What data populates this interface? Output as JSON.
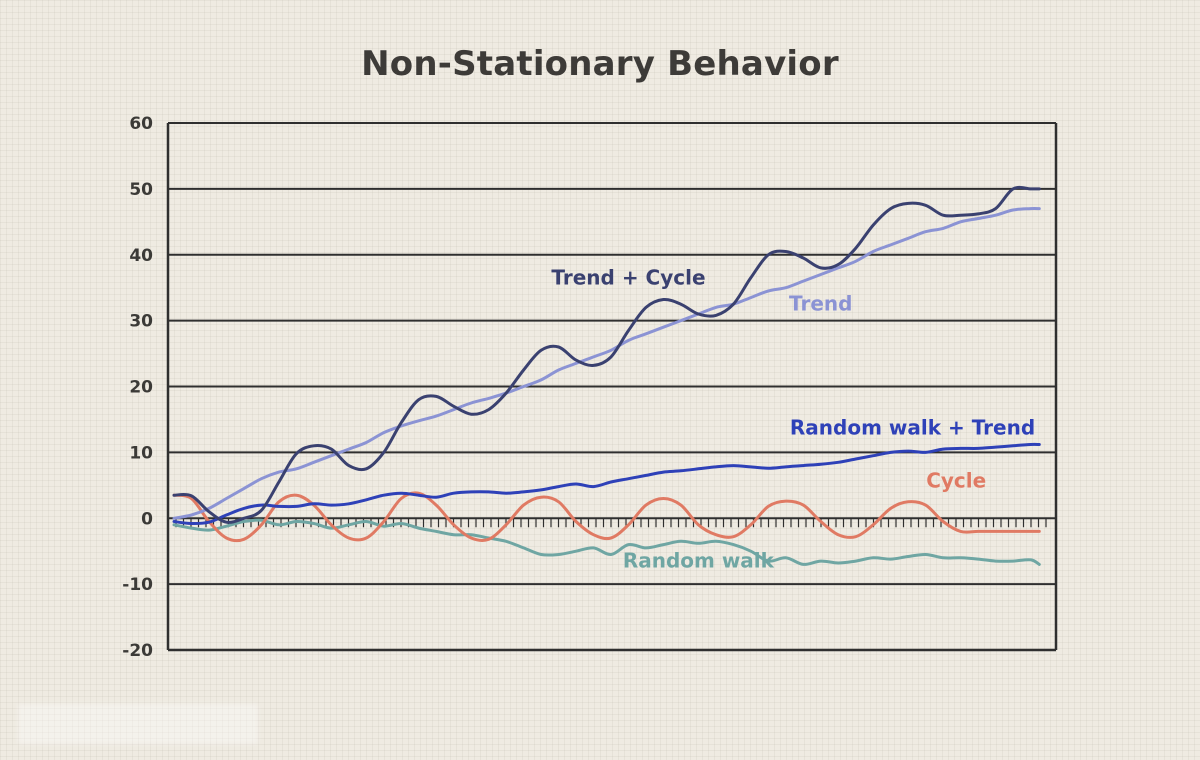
{
  "chart_data": {
    "type": "line",
    "title": "Non-Stationary Behavior",
    "xlabel": "",
    "ylabel": "",
    "xlim": [
      0,
      100
    ],
    "ylim": [
      -20,
      60
    ],
    "yticks": [
      60,
      50,
      40,
      30,
      20,
      10,
      0,
      -10,
      -20
    ],
    "ytick_labels": [
      "60",
      "50",
      "40",
      "30",
      "20",
      "10",
      "0",
      "-10",
      "-20"
    ],
    "grid": "horizontal",
    "legend": "inline labels",
    "x": [
      0,
      2,
      4,
      6,
      8,
      10,
      12,
      14,
      16,
      18,
      20,
      22,
      24,
      26,
      28,
      30,
      32,
      34,
      36,
      38,
      40,
      42,
      44,
      46,
      48,
      50,
      52,
      54,
      56,
      58,
      60,
      62,
      64,
      66,
      68,
      70,
      72,
      74,
      76,
      78,
      80,
      82,
      84,
      86,
      88,
      90,
      92,
      94,
      96,
      98,
      99
    ],
    "series": [
      {
        "name": "Trend + Cycle",
        "color": "#3a4170",
        "label_pos": [
          52,
          35.5
        ],
        "values": [
          3.5,
          3.4,
          1.0,
          -0.6,
          0.0,
          1.2,
          5.5,
          9.8,
          11.0,
          10.5,
          8.0,
          7.5,
          10.0,
          14.5,
          18.0,
          18.5,
          17.0,
          15.8,
          16.5,
          19.0,
          22.5,
          25.5,
          26.0,
          24.0,
          23.2,
          24.5,
          28.5,
          32.0,
          33.2,
          32.5,
          31.0,
          30.8,
          32.5,
          36.5,
          40.0,
          40.5,
          39.5,
          38.0,
          38.5,
          41.0,
          44.5,
          47.0,
          47.8,
          47.5,
          46.0,
          46.0,
          46.2,
          47.0,
          50.0,
          50.0,
          50.0
        ]
      },
      {
        "name": "Trend",
        "color": "#8b93d4",
        "label_pos": [
          74,
          31.5
        ],
        "values": [
          0.0,
          0.5,
          1.5,
          3.0,
          4.5,
          6.0,
          7.0,
          7.5,
          8.5,
          9.5,
          10.5,
          11.5,
          13.0,
          14.0,
          14.8,
          15.5,
          16.5,
          17.5,
          18.2,
          19.0,
          20.0,
          21.0,
          22.5,
          23.5,
          24.5,
          25.5,
          27.0,
          28.0,
          29.0,
          30.0,
          31.0,
          32.0,
          32.5,
          33.5,
          34.5,
          35.0,
          36.0,
          37.0,
          38.0,
          39.0,
          40.5,
          41.5,
          42.5,
          43.5,
          44.0,
          45.0,
          45.5,
          46.0,
          46.8,
          47.0,
          47.0
        ]
      },
      {
        "name": "Random walk + Trend",
        "color": "#2e41b8",
        "label_pos": [
          84.5,
          12.7
        ],
        "values": [
          -0.5,
          -0.8,
          -0.6,
          0.5,
          1.5,
          2.0,
          1.8,
          1.8,
          2.2,
          2.0,
          2.2,
          2.8,
          3.5,
          3.8,
          3.5,
          3.2,
          3.8,
          4.0,
          4.0,
          3.8,
          4.0,
          4.3,
          4.8,
          5.2,
          4.8,
          5.5,
          6.0,
          6.5,
          7.0,
          7.2,
          7.5,
          7.8,
          8.0,
          7.8,
          7.6,
          7.8,
          8.0,
          8.2,
          8.5,
          9.0,
          9.5,
          10.0,
          10.2,
          10.0,
          10.5,
          10.6,
          10.6,
          10.8,
          11.0,
          11.2,
          11.2
        ]
      },
      {
        "name": "Cycle",
        "color": "#e07a63",
        "label_pos": [
          89.5,
          4.7
        ],
        "values": [
          3.5,
          3.0,
          -0.5,
          -3.0,
          -3.2,
          -1.0,
          2.5,
          3.5,
          2.0,
          -1.0,
          -3.0,
          -3.0,
          -0.5,
          3.0,
          3.8,
          2.0,
          -1.0,
          -3.0,
          -3.2,
          -1.0,
          2.0,
          3.2,
          2.5,
          -0.5,
          -2.5,
          -3.0,
          -1.0,
          2.0,
          3.0,
          2.0,
          -1.0,
          -2.5,
          -2.8,
          -1.0,
          1.8,
          2.6,
          2.0,
          -0.5,
          -2.5,
          -2.8,
          -1.0,
          1.5,
          2.5,
          2.0,
          -0.5,
          -2.0,
          -2.0,
          -2.0,
          -2.0,
          -2.0,
          -2.0
        ]
      },
      {
        "name": "Random walk",
        "color": "#6fa6a3",
        "label_pos": [
          60,
          -7.5
        ],
        "values": [
          -1.0,
          -1.5,
          -1.8,
          -1.2,
          -0.5,
          -0.3,
          -1.0,
          -0.5,
          -0.8,
          -1.5,
          -1.0,
          -0.5,
          -1.2,
          -0.8,
          -1.5,
          -2.0,
          -2.5,
          -2.5,
          -3.0,
          -3.5,
          -4.5,
          -5.5,
          -5.5,
          -5.0,
          -4.5,
          -5.5,
          -4.0,
          -4.5,
          -4.0,
          -3.5,
          -3.8,
          -3.5,
          -4.0,
          -5.0,
          -6.5,
          -6.0,
          -7.0,
          -6.5,
          -6.8,
          -6.5,
          -6.0,
          -6.2,
          -5.8,
          -5.5,
          -6.0,
          -6.0,
          -6.2,
          -6.5,
          -6.5,
          -6.3,
          -7.0
        ]
      }
    ]
  }
}
